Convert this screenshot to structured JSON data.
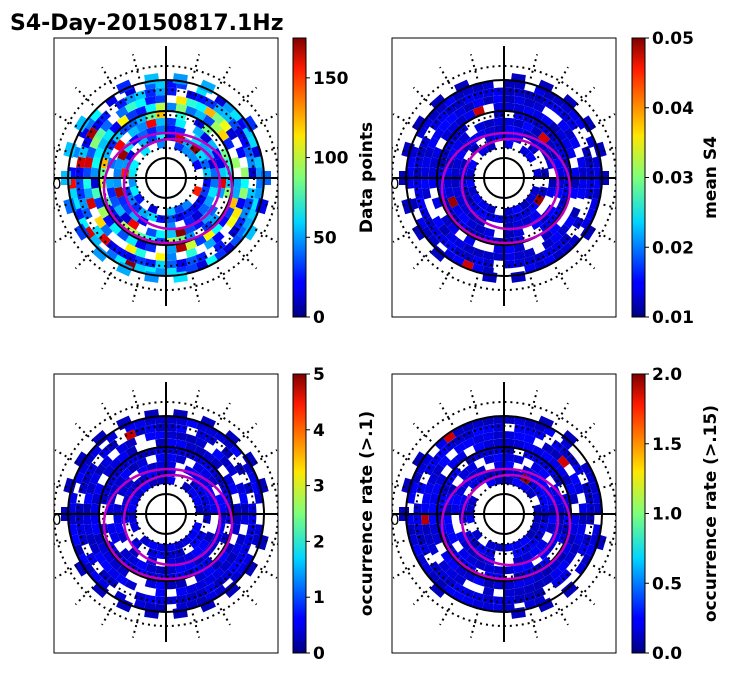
{
  "figure": {
    "title": "S4-Day-20150817.1Hz",
    "colormap": "jet",
    "ring_color": "#000000",
    "dotted_color": "#000000",
    "oval_color": "#c000c0",
    "partial_label": "0",
    "partial_label_2": "0",
    "partial_label_3": "0"
  },
  "chart_data": [
    {
      "type": "heatmap",
      "projection": "polar",
      "title": "",
      "colorbar": {
        "label": "Data points",
        "range": [
          0,
          175
        ],
        "ticks": [
          0,
          50,
          100,
          150
        ],
        "tick_labels": [
          "0",
          "50",
          "100",
          "150"
        ]
      },
      "field": "data-points"
    },
    {
      "type": "heatmap",
      "projection": "polar",
      "title": "",
      "colorbar": {
        "label": "mean S4",
        "range": [
          0.01,
          0.05
        ],
        "ticks": [
          0.01,
          0.02,
          0.03,
          0.04,
          0.05
        ],
        "tick_labels": [
          "0.01",
          "0.02",
          "0.03",
          "0.04",
          "0.05"
        ]
      },
      "field": "mean-s4"
    },
    {
      "type": "heatmap",
      "projection": "polar",
      "title": "",
      "colorbar": {
        "label": "occurrence rate (>.1)",
        "range": [
          0,
          5
        ],
        "ticks": [
          0,
          1,
          2,
          3,
          4,
          5
        ],
        "tick_labels": [
          "0",
          "1",
          "2",
          "3",
          "4",
          "5"
        ]
      },
      "field": "occurrence-rate-0.1"
    },
    {
      "type": "heatmap",
      "projection": "polar",
      "title": "",
      "colorbar": {
        "label": "occurrence rate (>.15)",
        "range": [
          0,
          2
        ],
        "ticks": [
          0,
          0.5,
          1,
          1.5,
          2
        ],
        "tick_labels": [
          "0.0",
          "0.5",
          "1.0",
          "1.5",
          "2.0"
        ]
      },
      "field": "occurrence-rate-0.15"
    }
  ]
}
